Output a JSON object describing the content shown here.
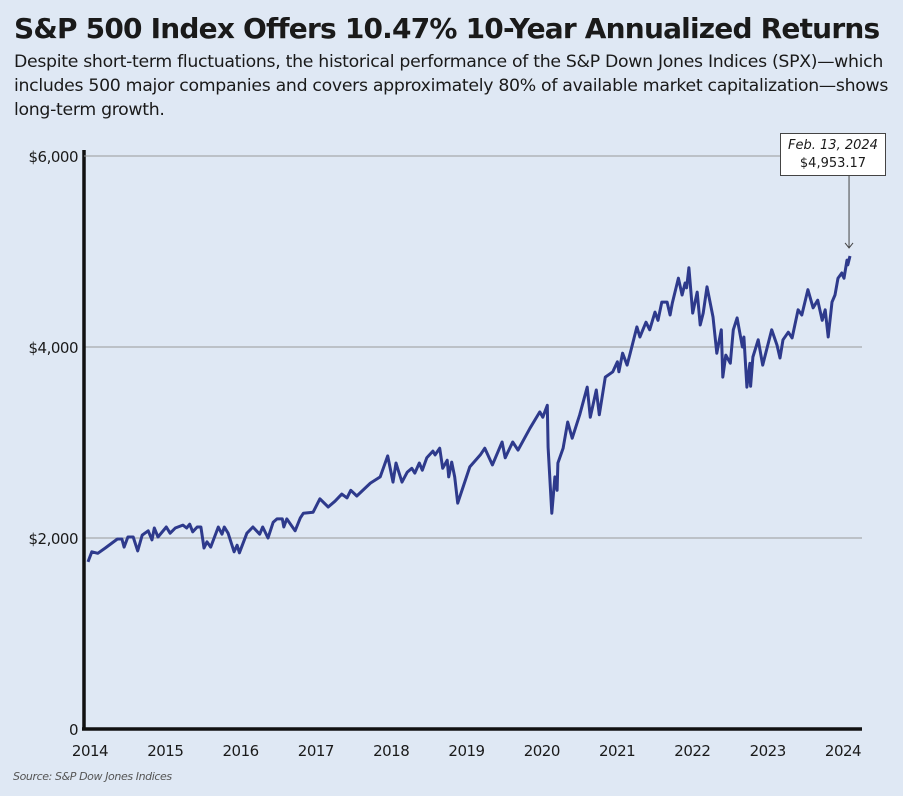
{
  "chart_data": {
    "type": "line",
    "title": "S&P 500 Index Offers 10.47% 10-Year Annualized Returns",
    "subtitle": "Despite short-term fluctuations, the historical performance of the S&P Down Jones Indices (SPX)—which includes 500 major companies and covers approximately 80% of available market capitalization—shows long-term growth.",
    "source": "Source: S&P Dow Jones Indices",
    "xlabel": "",
    "ylabel": "",
    "xlim": [
      2014,
      2024.13
    ],
    "ylim": [
      0,
      6000
    ],
    "x_ticks": [
      "2014",
      "2015",
      "2016",
      "2017",
      "2018",
      "2019",
      "2020",
      "2021",
      "2022",
      "2023",
      "2024"
    ],
    "y_ticks": [
      {
        "value": 0,
        "label": "0"
      },
      {
        "value": 2000,
        "label": "$2,000"
      },
      {
        "value": 4000,
        "label": "$4,000"
      },
      {
        "value": 6000,
        "label": "$6,000"
      }
    ],
    "grid": "horizontal",
    "line_color": "#2e3a8c",
    "annotation": {
      "date": "Feb. 13, 2024",
      "value_label": "$4,953.17",
      "x": 2024.12,
      "y": 4953.17
    },
    "series": [
      {
        "points": [
          [
            2014.0,
            1750
          ],
          [
            2014.05,
            1855
          ],
          [
            2014.13,
            1840
          ],
          [
            2014.23,
            1895
          ],
          [
            2014.39,
            1990
          ],
          [
            2014.45,
            1990
          ],
          [
            2014.48,
            1905
          ],
          [
            2014.53,
            2010
          ],
          [
            2014.6,
            2010
          ],
          [
            2014.66,
            1865
          ],
          [
            2014.72,
            2030
          ],
          [
            2014.8,
            2075
          ],
          [
            2014.85,
            1980
          ],
          [
            2014.88,
            2105
          ],
          [
            2014.93,
            2010
          ],
          [
            2015.04,
            2115
          ],
          [
            2015.09,
            2050
          ],
          [
            2015.16,
            2105
          ],
          [
            2015.26,
            2135
          ],
          [
            2015.31,
            2105
          ],
          [
            2015.35,
            2145
          ],
          [
            2015.39,
            2065
          ],
          [
            2015.45,
            2115
          ],
          [
            2015.5,
            2115
          ],
          [
            2015.54,
            1895
          ],
          [
            2015.58,
            1960
          ],
          [
            2015.63,
            1905
          ],
          [
            2015.73,
            2115
          ],
          [
            2015.78,
            2040
          ],
          [
            2015.81,
            2115
          ],
          [
            2015.86,
            2050
          ],
          [
            2015.94,
            1855
          ],
          [
            2015.98,
            1925
          ],
          [
            2016.01,
            1845
          ],
          [
            2016.11,
            2050
          ],
          [
            2016.19,
            2115
          ],
          [
            2016.28,
            2040
          ],
          [
            2016.32,
            2115
          ],
          [
            2016.39,
            2000
          ],
          [
            2016.46,
            2165
          ],
          [
            2016.51,
            2200
          ],
          [
            2016.58,
            2200
          ],
          [
            2016.6,
            2115
          ],
          [
            2016.64,
            2200
          ],
          [
            2016.75,
            2075
          ],
          [
            2016.82,
            2210
          ],
          [
            2016.86,
            2260
          ],
          [
            2016.99,
            2270
          ],
          [
            2017.08,
            2410
          ],
          [
            2017.19,
            2325
          ],
          [
            2017.28,
            2385
          ],
          [
            2017.37,
            2460
          ],
          [
            2017.44,
            2420
          ],
          [
            2017.49,
            2500
          ],
          [
            2017.57,
            2440
          ],
          [
            2017.75,
            2575
          ],
          [
            2017.88,
            2640
          ],
          [
            2017.98,
            2860
          ],
          [
            2018.05,
            2585
          ],
          [
            2018.09,
            2785
          ],
          [
            2018.12,
            2710
          ],
          [
            2018.17,
            2585
          ],
          [
            2018.24,
            2690
          ],
          [
            2018.3,
            2730
          ],
          [
            2018.34,
            2680
          ],
          [
            2018.4,
            2785
          ],
          [
            2018.44,
            2710
          ],
          [
            2018.5,
            2840
          ],
          [
            2018.58,
            2910
          ],
          [
            2018.61,
            2870
          ],
          [
            2018.67,
            2940
          ],
          [
            2018.71,
            2730
          ],
          [
            2018.77,
            2815
          ],
          [
            2018.79,
            2640
          ],
          [
            2018.83,
            2795
          ],
          [
            2018.87,
            2640
          ],
          [
            2018.91,
            2365
          ],
          [
            2019.07,
            2745
          ],
          [
            2019.21,
            2870
          ],
          [
            2019.27,
            2940
          ],
          [
            2019.37,
            2765
          ],
          [
            2019.5,
            3005
          ],
          [
            2019.54,
            2840
          ],
          [
            2019.64,
            3005
          ],
          [
            2019.71,
            2920
          ],
          [
            2019.87,
            3150
          ],
          [
            2020.0,
            3320
          ],
          [
            2020.04,
            3265
          ],
          [
            2020.1,
            3390
          ],
          [
            2020.11,
            2950
          ],
          [
            2020.16,
            2260
          ],
          [
            2020.2,
            2640
          ],
          [
            2020.23,
            2500
          ],
          [
            2020.24,
            2785
          ],
          [
            2020.31,
            2940
          ],
          [
            2020.37,
            3215
          ],
          [
            2020.43,
            3045
          ],
          [
            2020.53,
            3290
          ],
          [
            2020.63,
            3580
          ],
          [
            2020.67,
            3265
          ],
          [
            2020.75,
            3550
          ],
          [
            2020.79,
            3290
          ],
          [
            2020.87,
            3685
          ],
          [
            2020.97,
            3740
          ],
          [
            2021.03,
            3845
          ],
          [
            2021.05,
            3740
          ],
          [
            2021.1,
            3935
          ],
          [
            2021.16,
            3810
          ],
          [
            2021.2,
            3935
          ],
          [
            2021.29,
            4210
          ],
          [
            2021.33,
            4105
          ],
          [
            2021.41,
            4260
          ],
          [
            2021.46,
            4180
          ],
          [
            2021.53,
            4365
          ],
          [
            2021.57,
            4280
          ],
          [
            2021.62,
            4470
          ],
          [
            2021.69,
            4470
          ],
          [
            2021.73,
            4335
          ],
          [
            2021.76,
            4460
          ],
          [
            2021.84,
            4720
          ],
          [
            2021.89,
            4545
          ],
          [
            2021.93,
            4670
          ],
          [
            2021.95,
            4620
          ],
          [
            2021.98,
            4830
          ],
          [
            2022.03,
            4355
          ],
          [
            2022.09,
            4575
          ],
          [
            2022.13,
            4230
          ],
          [
            2022.17,
            4355
          ],
          [
            2022.22,
            4630
          ],
          [
            2022.3,
            4315
          ],
          [
            2022.35,
            3935
          ],
          [
            2022.41,
            4180
          ],
          [
            2022.43,
            3685
          ],
          [
            2022.47,
            3915
          ],
          [
            2022.53,
            3830
          ],
          [
            2022.57,
            4180
          ],
          [
            2022.62,
            4305
          ],
          [
            2022.69,
            4000
          ],
          [
            2022.71,
            4105
          ],
          [
            2022.75,
            3580
          ],
          [
            2022.79,
            3830
          ],
          [
            2022.8,
            3590
          ],
          [
            2022.83,
            3895
          ],
          [
            2022.9,
            4075
          ],
          [
            2022.96,
            3810
          ],
          [
            2023.08,
            4180
          ],
          [
            2023.15,
            4020
          ],
          [
            2023.19,
            3885
          ],
          [
            2023.23,
            4075
          ],
          [
            2023.3,
            4155
          ],
          [
            2023.35,
            4095
          ],
          [
            2023.43,
            4390
          ],
          [
            2023.48,
            4335
          ],
          [
            2023.56,
            4600
          ],
          [
            2023.63,
            4410
          ],
          [
            2023.69,
            4490
          ],
          [
            2023.75,
            4280
          ],
          [
            2023.79,
            4390
          ],
          [
            2023.83,
            4105
          ],
          [
            2023.88,
            4470
          ],
          [
            2023.92,
            4545
          ],
          [
            2023.96,
            4720
          ],
          [
            2024.01,
            4775
          ],
          [
            2024.04,
            4720
          ],
          [
            2024.08,
            4910
          ],
          [
            2024.09,
            4860
          ],
          [
            2024.12,
            4953.17
          ]
        ]
      }
    ]
  }
}
